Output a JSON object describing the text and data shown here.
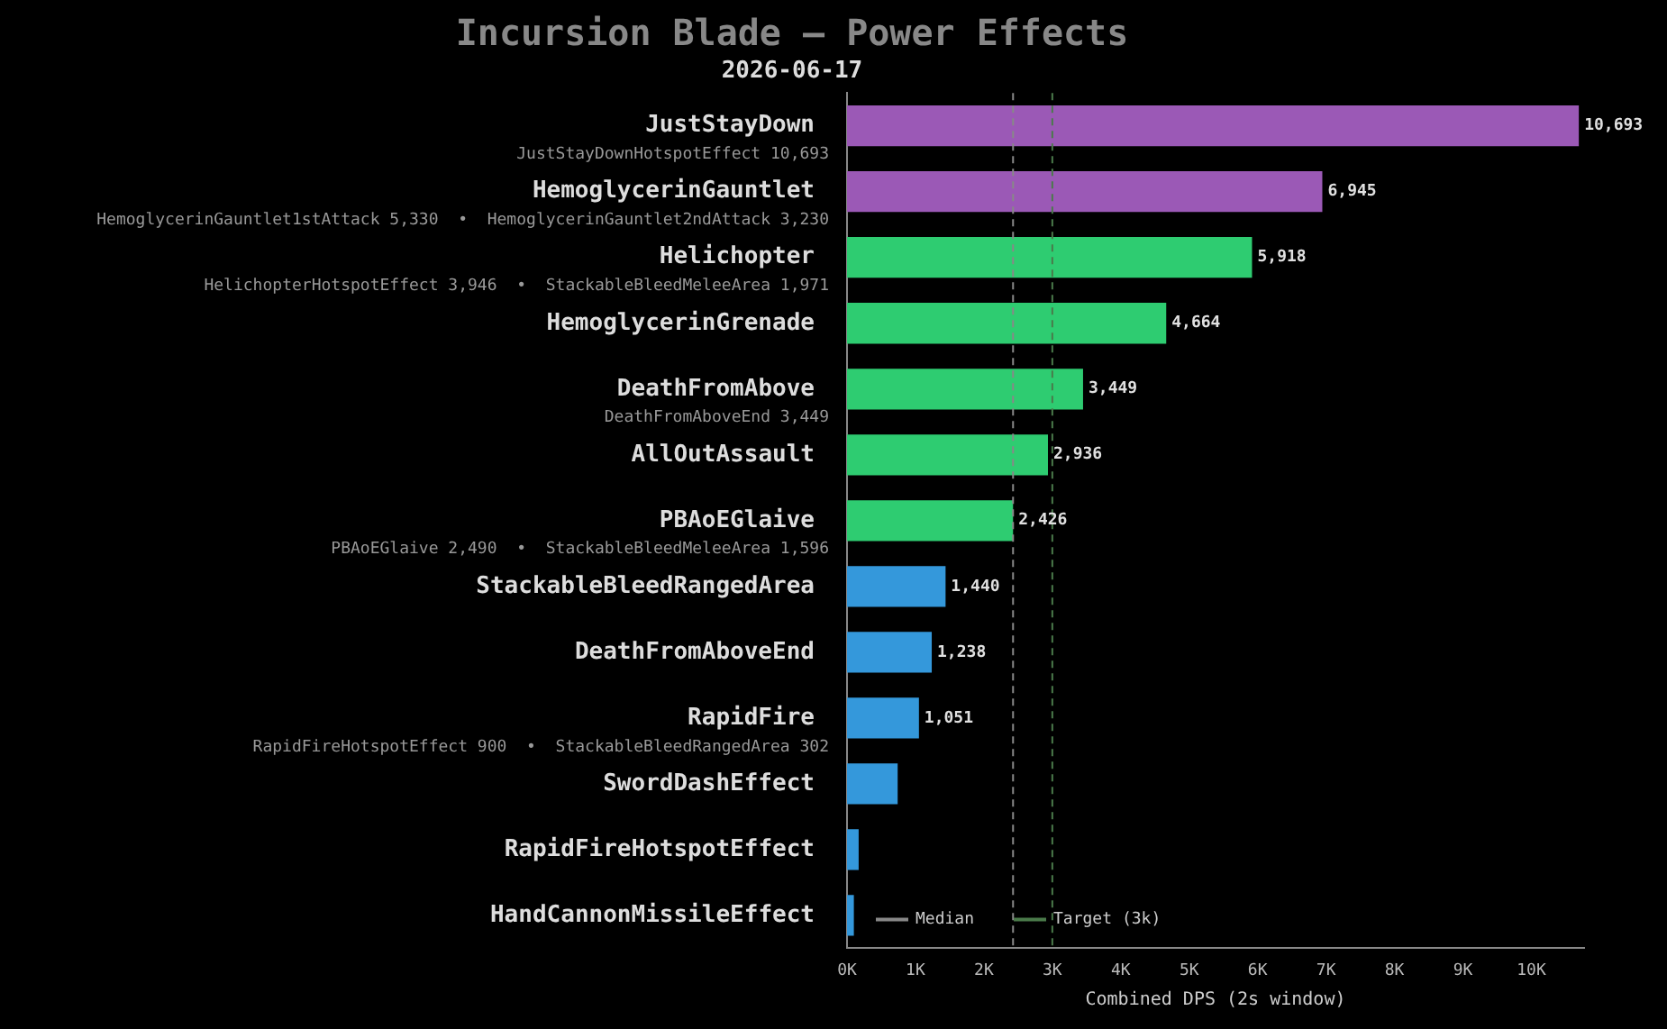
{
  "chart_data": {
    "type": "bar",
    "orientation": "horizontal",
    "title": "Incursion Blade — Power Effects",
    "subtitle": "2026-06-17",
    "xlabel": "Combined DPS (2s window)",
    "categories": [
      "JustStayDown\nJustStayDownHotspotEffect 10,693",
      "HemoglycerinGauntlet\nHemoglycerinGauntlet1stAttack 5,330  •  HemoglycerinGauntlet2ndAttack 3,230",
      "Helichopter\nHelichopterHotspotEffect 3,946  •  StackableBleedMeleeArea 1,971",
      "HemoglycerinGrenade",
      "DeathFromAbove\nDeathFromAboveEnd 3,449",
      "AllOutAssault",
      "PBAoEGlaive\nPBAoEGlaive 2,490  •  StackableBleedMeleeArea 1,596",
      "StackableBleedRangedArea",
      "DeathFromAboveEnd",
      "RapidFire\nRapidFireHotspotEffect 900  •  StackableBleedRangedArea 302",
      "SwordDashEffect",
      "RapidFireHotspotEffect",
      "HandCannonMissileEffect"
    ],
    "values": [
      10693,
      6945,
      5918,
      4664,
      3449,
      2936,
      2426,
      1440,
      1238,
      1051,
      740,
      170,
      100
    ],
    "colors": [
      "#9b59b6",
      "#9b59b6",
      "#2ecc71",
      "#2ecc71",
      "#2ecc71",
      "#2ecc71",
      "#2ecc71",
      "#3498db",
      "#3498db",
      "#3498db",
      "#3498db",
      "#3498db",
      "#3498db"
    ],
    "value_labels": [
      "10,693",
      "6,945",
      "5,918",
      "4,664",
      "3,449",
      "2,936",
      "2,426",
      "1,440",
      "1,238",
      "1,051",
      null,
      null,
      null
    ],
    "xlim": [
      0,
      10770
    ],
    "xticks": [
      {
        "value": 0,
        "label": "0K"
      },
      {
        "value": 1000,
        "label": "1K"
      },
      {
        "value": 2000,
        "label": "2K"
      },
      {
        "value": 3000,
        "label": "3K"
      },
      {
        "value": 4000,
        "label": "4K"
      },
      {
        "value": 5000,
        "label": "5K"
      },
      {
        "value": 6000,
        "label": "6K"
      },
      {
        "value": 7000,
        "label": "7K"
      },
      {
        "value": 8000,
        "label": "8K"
      },
      {
        "value": 9000,
        "label": "9K"
      },
      {
        "value": 10000,
        "label": "10K"
      }
    ],
    "ref_lines": [
      {
        "axis": "x",
        "value": 2426,
        "label": "Median",
        "color": "#888888",
        "line_style": "dashed"
      },
      {
        "axis": "x",
        "value": 3000,
        "label": "Target (3k)",
        "color": "#4a7a4a",
        "line_style": "dashed"
      }
    ],
    "legend": "bottom left",
    "grid": false
  }
}
